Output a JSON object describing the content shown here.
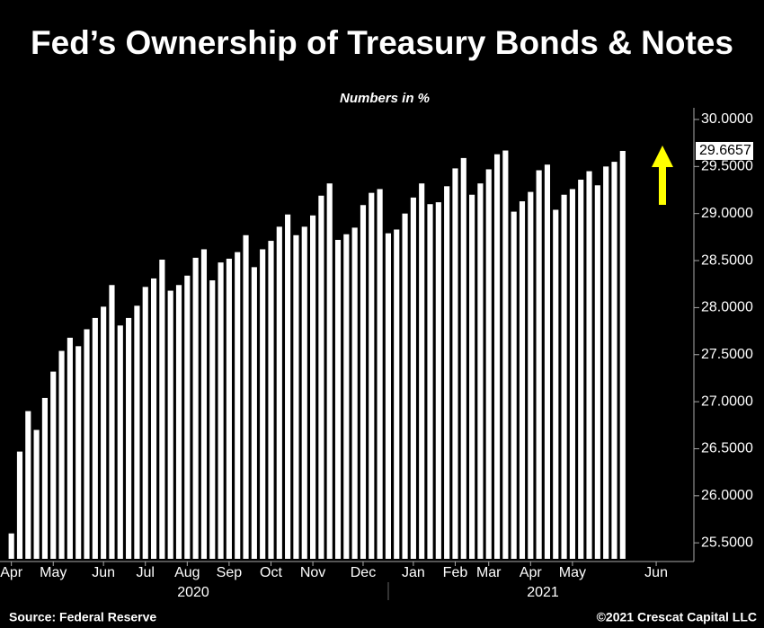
{
  "chart_data": {
    "type": "bar",
    "title": "Fed’s Ownership of Treasury Bonds & Notes",
    "subtitle": "Numbers in %",
    "categories": [
      "Apr",
      null,
      null,
      null,
      null,
      "May",
      null,
      null,
      null,
      null,
      null,
      "Jun",
      null,
      null,
      null,
      null,
      "Jul",
      null,
      null,
      null,
      null,
      "Aug",
      null,
      null,
      null,
      null,
      "Sep",
      null,
      null,
      null,
      null,
      "Oct",
      null,
      null,
      null,
      null,
      "Nov",
      null,
      null,
      null,
      null,
      null,
      "Dec",
      null,
      null,
      null,
      null,
      null,
      "Jan",
      null,
      null,
      null,
      null,
      "Feb",
      null,
      null,
      null,
      "Mar",
      null,
      null,
      null,
      null,
      "Apr",
      null,
      null,
      null,
      null,
      "May",
      null,
      null,
      null,
      null,
      null,
      null,
      null,
      null,
      null,
      "Jun",
      null,
      null,
      null,
      null
    ],
    "values": [
      25.6,
      26.47,
      26.9,
      26.7,
      27.04,
      27.32,
      27.54,
      27.68,
      27.59,
      27.77,
      27.89,
      28.01,
      28.24,
      27.81,
      27.89,
      28.02,
      28.22,
      28.31,
      28.51,
      28.18,
      28.24,
      28.34,
      28.53,
      28.62,
      28.29,
      28.48,
      28.52,
      28.59,
      28.77,
      28.43,
      28.62,
      28.71,
      28.86,
      28.99,
      28.77,
      28.86,
      28.98,
      29.19,
      29.32,
      28.72,
      28.78,
      28.85,
      29.09,
      29.22,
      29.26,
      28.79,
      28.83,
      29.0,
      29.17,
      29.32,
      29.1,
      29.12,
      29.29,
      29.48,
      29.59,
      29.2,
      29.32,
      29.47,
      29.63,
      29.67,
      29.02,
      29.13,
      29.23,
      29.46,
      29.52,
      29.04,
      29.2,
      29.26,
      29.36,
      29.45,
      29.3,
      29.5,
      29.55,
      29.6657,
      null,
      null,
      null,
      null,
      null,
      null,
      null,
      null
    ],
    "color": "#ffffff",
    "ylim": [
      25.33,
      30.12
    ],
    "yticks": [
      {
        "value": 25.5,
        "label": "25.5000"
      },
      {
        "value": 26,
        "label": "26.0000"
      },
      {
        "value": 26.5,
        "label": "26.5000"
      },
      {
        "value": 27,
        "label": "27.0000"
      },
      {
        "value": 27.5,
        "label": "27.5000"
      },
      {
        "value": 28,
        "label": "28.0000"
      },
      {
        "value": 28.5,
        "label": "28.5000"
      },
      {
        "value": 29,
        "label": "29.0000"
      },
      {
        "value": 29.5,
        "label": "29.5000"
      },
      {
        "value": 30,
        "label": "30.0000"
      }
    ],
    "year_labels": [
      "2020",
      "2021"
    ],
    "source": "Source: Federal Reserve",
    "copyright": "©2021 Crescat Capital LLC"
  }
}
